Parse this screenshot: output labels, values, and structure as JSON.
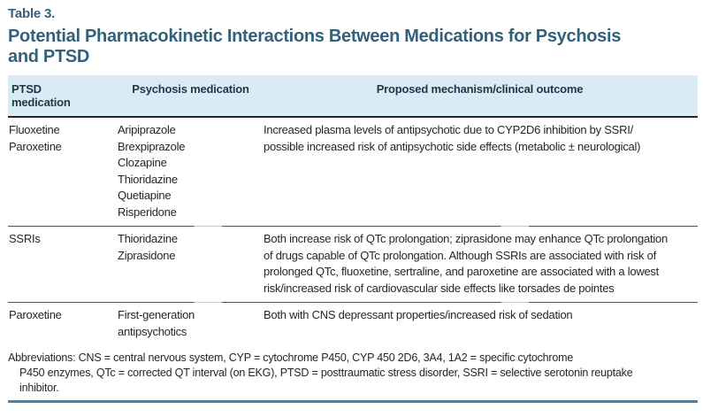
{
  "table_label": "Table 3.",
  "title": "Potential Pharmacokinetic Interactions Between Medications for Psychosis\nand PTSD",
  "header": {
    "ptsd": "PTSD\nmedication",
    "psychosis": "Psychosis medication",
    "mechanism": "Proposed mechanism/clinical outcome"
  },
  "rows": [
    {
      "ptsd": "Fluoxetine\nParoxetine",
      "psychosis": "Aripiprazole\nBrexpiprazole\nClozapine\nThioridazine\nQuetiapine\nRisperidone",
      "mechanism": "Increased plasma levels of antipsychotic due to CYP2D6 inhibition by SSRI/\npossible increased risk of antipsychotic side effects (metabolic ± neurological)"
    },
    {
      "ptsd": "SSRIs",
      "psychosis": "Thioridazine\nZiprasidone",
      "mechanism": "Both increase risk of QTc prolongation; ziprasidone may enhance QTc prolongation\nof drugs capable of QTc prolongation. Although SSRIs are associated with risk of\nprolonged QTc, fluoxetine, sertraline, and paroxetine are associated with a lowest\nrisk/increased risk of cardiovascular side effects like torsades de pointes"
    },
    {
      "ptsd": "Paroxetine",
      "psychosis": "First-generation\nantipsychotics",
      "mechanism": "Both with CNS depressant properties/increased risk of sedation"
    }
  ],
  "footnote": "Abbreviations: CNS = central nervous system, CYP = cytochrome P450, CYP 450 2D6, 3A4, 1A2 = specific cytochrome\nP450 enzymes, QTc = corrected QT interval (on EKG), PTSD = posttraumatic stress disorder, SSRI = selective serotonin reuptake\ninhibitor.",
  "colors": {
    "title_accent": "#336179",
    "header_background": "#d9ecf5",
    "header_text": "#1d3849",
    "body_text": "#262626",
    "heavy_rule": "#22282c",
    "row_divider": "#49565f",
    "bottom_rule": "#5d7e91"
  }
}
